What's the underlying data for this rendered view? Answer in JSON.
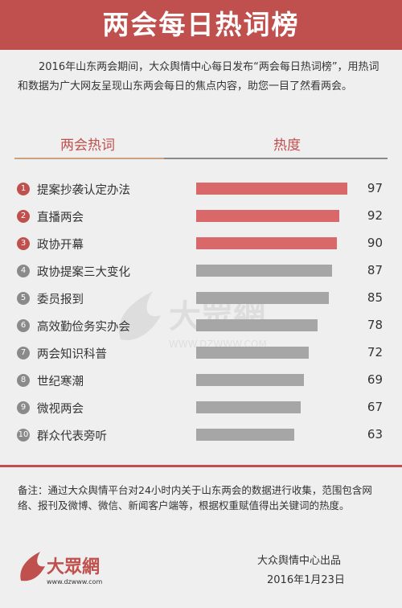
{
  "header": {
    "title": "两会每日热词榜"
  },
  "intro": "2016年山东两会期间，大众舆情中心每日发布“两会每日热词榜”，用热词和数据为广大网友呈现山东两会每日的焦点内容，助您一目了然看两会。",
  "columns": {
    "keyword": "两会热词",
    "heat": "热度"
  },
  "colors": {
    "accent": "#c0504d",
    "bar_top": "#d9686a",
    "bar_rest": "#a6a6a6",
    "rank_top": "#c0504d",
    "rank_rest": "#8a8a8a"
  },
  "chart_data": {
    "type": "bar",
    "orientation": "horizontal",
    "categories": [
      "提案抄袭认定办法",
      "直播两会",
      "政协开幕",
      "政协提案三大变化",
      "委员报到",
      "高效勤俭务实办会",
      "两会知识科普",
      "世纪寒潮",
      "微视两会",
      "群众代表旁听"
    ],
    "ranks": [
      "1",
      "2",
      "3",
      "4",
      "5",
      "6",
      "7",
      "8",
      "9",
      "10"
    ],
    "values": [
      97,
      92,
      90,
      87,
      85,
      78,
      72,
      69,
      67,
      63
    ],
    "xlim": [
      0,
      100
    ],
    "highlight_top": 3
  },
  "watermark": {
    "text": "大眾網",
    "url": "WWW.DZWWW.COM"
  },
  "footer": {
    "note": "备注：通过大众舆情平台对24小时内关于山东两会的数据进行收集，范围包含网络、报刊及微博、微信、新闻客户端等，根据权重赋值得出关键词的热度。",
    "logo_text": "大眾網",
    "logo_url": "www.dzwww.com",
    "credit": "大众舆情中心出品",
    "date": "2016年1月23日"
  }
}
